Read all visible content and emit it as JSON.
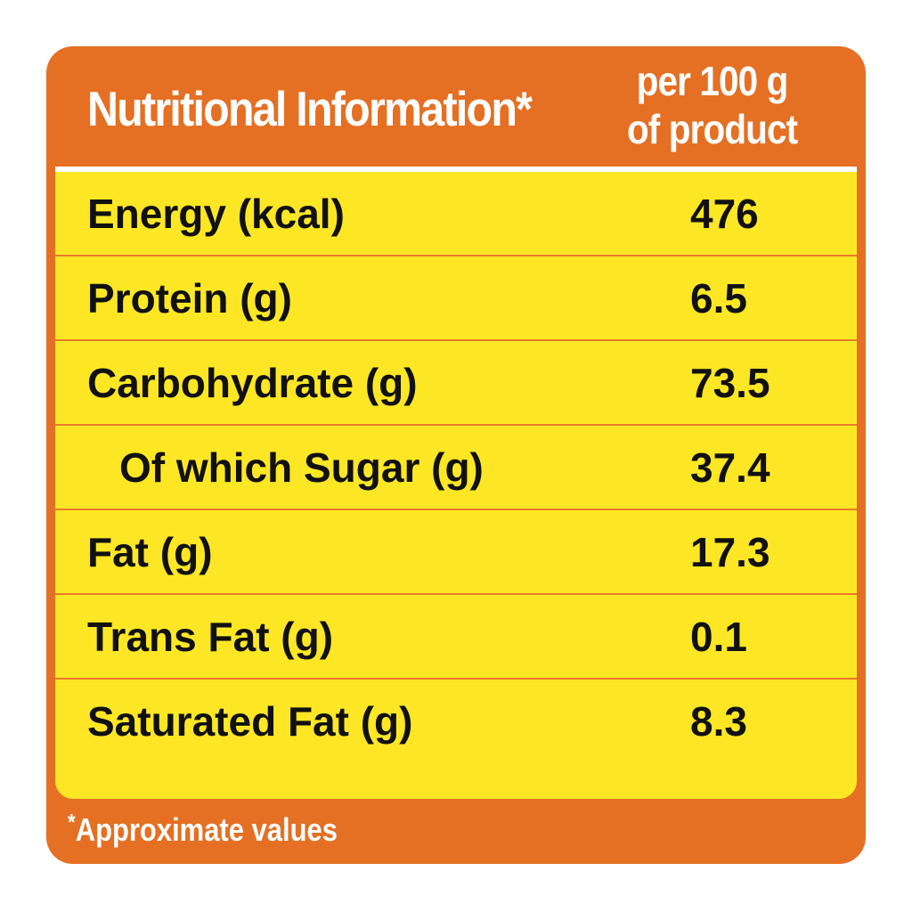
{
  "header": {
    "title": "Nutritional Information*",
    "per_line1": "per 100 g",
    "per_line2": "of product"
  },
  "rows": [
    {
      "label": "Energy (kcal)",
      "value": "476"
    },
    {
      "label": "Protein (g)",
      "value": "6.5"
    },
    {
      "label": "Carbohydrate (g)",
      "value": "73.5"
    },
    {
      "label": "Of which Sugar (g)",
      "value": "37.4"
    },
    {
      "label": "Fat (g)",
      "value": "17.3"
    },
    {
      "label": "Trans Fat (g)",
      "value": "0.1"
    },
    {
      "label": "Saturated Fat (g)",
      "value": "8.3"
    }
  ],
  "footnote": {
    "star": "*",
    "text": "Approximate values"
  },
  "colors": {
    "panel": "#e56f22",
    "table": "#fde725",
    "divider": "#e87a2a",
    "text": "#111111"
  }
}
